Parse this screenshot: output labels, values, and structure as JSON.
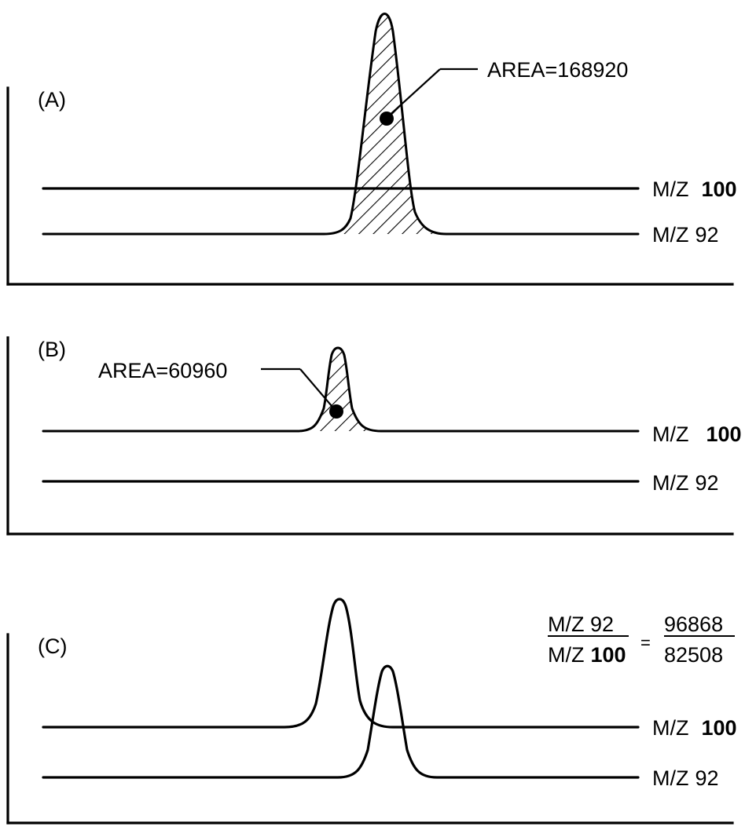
{
  "chart_data": [
    {
      "type": "line",
      "panel": "(A)",
      "series": [
        {
          "name": "M/Z 100",
          "name_prefix": "M/Z",
          "name_value": "100",
          "peaks": []
        },
        {
          "name": "M/Z 92",
          "name_prefix": "M/Z",
          "name_value": "92",
          "peaks": [
            {
              "height": 1.0,
              "width": 1.0,
              "area_label": "AREA=168920",
              "hatched": true
            }
          ]
        }
      ]
    },
    {
      "type": "line",
      "panel": "(B)",
      "series": [
        {
          "name": "M/Z 100",
          "name_prefix": "M/Z",
          "name_value": "100",
          "peaks": [
            {
              "height": 0.37,
              "width": 0.6,
              "area_label": "AREA=60960",
              "hatched": true
            }
          ]
        },
        {
          "name": "M/Z 92",
          "name_prefix": "M/Z",
          "name_value": "92",
          "peaks": []
        }
      ]
    },
    {
      "type": "line",
      "panel": "(C)",
      "series": [
        {
          "name": "M/Z 100",
          "name_prefix": "M/Z",
          "name_value": "100",
          "peaks": [
            {
              "height": 0.56,
              "width": 0.9,
              "hatched": false
            }
          ]
        },
        {
          "name": "M/Z 92",
          "name_prefix": "M/Z",
          "name_value": "92",
          "peaks": [
            {
              "height": 0.48,
              "width": 0.8,
              "hatched": false
            }
          ]
        }
      ],
      "ratio": {
        "numerator_label": "M/Z 92",
        "denominator_prefix": "M/Z",
        "denominator_value": "100",
        "sign": "=",
        "numerator_value": "96868",
        "denominator_value_number": "82508"
      }
    }
  ]
}
